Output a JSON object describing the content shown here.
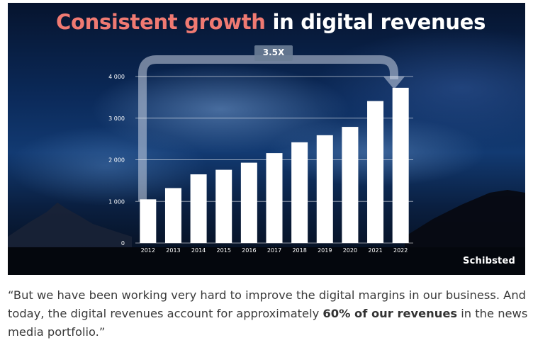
{
  "slide": {
    "title_accent": "Consistent growth",
    "title_rest": "in digital revenues",
    "multiplier": "3.5X",
    "logo": "Schibsted"
  },
  "chart_data": {
    "type": "bar",
    "categories": [
      "2012",
      "2013",
      "2014",
      "2015",
      "2016",
      "2017",
      "2018",
      "2019",
      "2020",
      "2021",
      "2022"
    ],
    "values": [
      1050,
      1320,
      1650,
      1760,
      1930,
      2160,
      2420,
      2590,
      2790,
      3410,
      3730
    ],
    "ylim": [
      0,
      4000
    ],
    "yticks": [
      0,
      1000,
      2000,
      3000,
      4000
    ],
    "ytick_labels": [
      "0",
      "1 000",
      "2 000",
      "3 000",
      "4 000"
    ],
    "grid": true,
    "bar_color": "#ffffff",
    "annotation": "3.5X"
  },
  "quote": {
    "text_before": "“But we have been working very hard to improve the digital margins in our business. And today, the digital revenues account for approximately ",
    "bold": "60% of our revenues",
    "text_after": " in the news media portfolio.”"
  },
  "colors": {
    "accent": "#f07a72",
    "caption_text": "#3a3a3a"
  }
}
